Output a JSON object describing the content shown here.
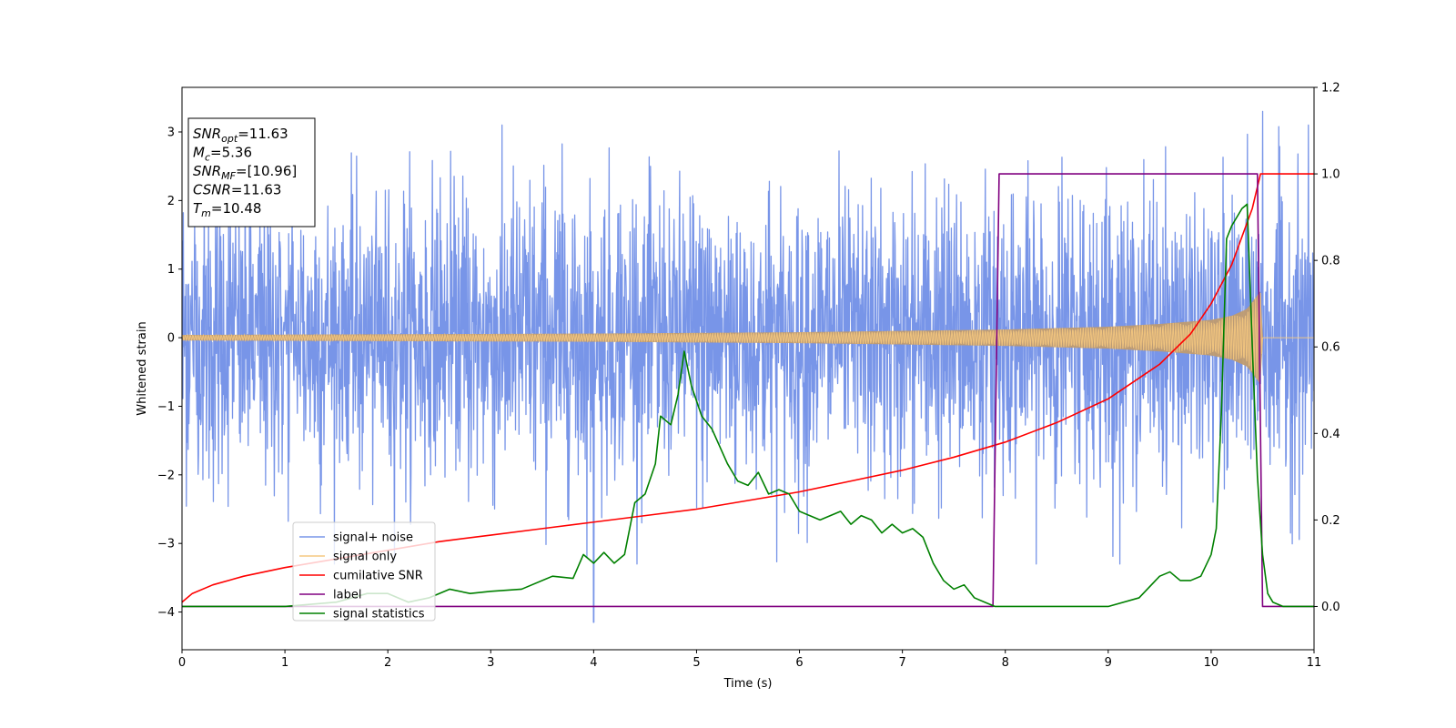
{
  "chart_data": {
    "type": "line",
    "xlabel": "Time (s)",
    "ylabel": "Whitened strain",
    "xlim": [
      0,
      11
    ],
    "ylim": [
      -4.55,
      3.65
    ],
    "y2lim": [
      -0.1,
      1.2
    ],
    "x_ticks": [
      "0",
      "1",
      "2",
      "3",
      "4",
      "5",
      "6",
      "7",
      "8",
      "9",
      "10",
      "11"
    ],
    "y_ticks": [
      "3",
      "2",
      "1",
      "0",
      "−1",
      "−2",
      "−3",
      "−4"
    ],
    "y2_ticks": [
      "1.2",
      "1.0",
      "0.8",
      "0.6",
      "0.4",
      "0.2",
      "0.0"
    ],
    "grid": false,
    "legend_position": "lower-left",
    "info_box": {
      "lines": [
        {
          "sym": "SNR",
          "sub": "opt",
          "val": "=11.63"
        },
        {
          "sym": "M",
          "sub": "c",
          "val": "=5.36"
        },
        {
          "sym": "SNR",
          "sub": "MF",
          "val": "=[10.96]"
        },
        {
          "sym": "CSNR",
          "sub": "",
          "val": "=11.63"
        },
        {
          "sym": "T",
          "sub": "m",
          "val": "=10.48"
        }
      ]
    },
    "series": [
      {
        "name": "signal+ noise",
        "axis": "left",
        "color": "#7895e8",
        "description_of_data": "whitened strain, roughly unit-variance noise spanning about -4.2 to 3.3",
        "envelope": {
          "typical_range": [
            -2.3,
            2.3
          ],
          "extreme_max": 3.3,
          "extreme_min": -4.15,
          "extreme_min_time": 4.0
        }
      },
      {
        "name": "signal only",
        "axis": "left",
        "color": "#f5c880",
        "description_of_data": "chirp signal, amplitude growing toward merger, ends at 10.48 s",
        "amplitude": [
          [
            0,
            0.04
          ],
          [
            2,
            0.05
          ],
          [
            4,
            0.06
          ],
          [
            6,
            0.08
          ],
          [
            8,
            0.12
          ],
          [
            9,
            0.16
          ],
          [
            9.5,
            0.2
          ],
          [
            10,
            0.26
          ],
          [
            10.2,
            0.32
          ],
          [
            10.35,
            0.42
          ],
          [
            10.43,
            0.58
          ],
          [
            10.48,
            0.68
          ],
          [
            10.5,
            0.0
          ],
          [
            11,
            0.0
          ]
        ]
      },
      {
        "name": "cumilative SNR",
        "axis": "right",
        "color": "#ff0000",
        "x": [
          0,
          0.1,
          0.3,
          0.6,
          1,
          1.5,
          2,
          2.5,
          3,
          3.5,
          4,
          4.5,
          5,
          5.5,
          6,
          6.5,
          7,
          7.5,
          8,
          8.5,
          9,
          9.5,
          9.8,
          10,
          10.2,
          10.4,
          10.48,
          10.5,
          11
        ],
        "y": [
          0.01,
          0.03,
          0.05,
          0.07,
          0.09,
          0.11,
          0.13,
          0.15,
          0.165,
          0.18,
          0.195,
          0.21,
          0.225,
          0.245,
          0.265,
          0.29,
          0.315,
          0.345,
          0.38,
          0.425,
          0.48,
          0.56,
          0.63,
          0.7,
          0.79,
          0.92,
          1.0,
          1.0,
          1.0
        ]
      },
      {
        "name": "label",
        "axis": "right",
        "color": "#800080",
        "x": [
          0,
          7.88,
          7.94,
          10.45,
          10.5,
          11
        ],
        "y": [
          0,
          0,
          1,
          1,
          0,
          0
        ]
      },
      {
        "name": "signal statistics",
        "axis": "right",
        "color": "#008000",
        "x": [
          0,
          1,
          1.5,
          1.8,
          2,
          2.2,
          2.4,
          2.6,
          2.8,
          3,
          3.3,
          3.6,
          3.8,
          3.9,
          4,
          4.1,
          4.2,
          4.3,
          4.4,
          4.5,
          4.6,
          4.65,
          4.75,
          4.82,
          4.88,
          4.95,
          5.05,
          5.15,
          5.3,
          5.4,
          5.5,
          5.6,
          5.7,
          5.8,
          5.9,
          6.0,
          6.1,
          6.2,
          6.4,
          6.5,
          6.6,
          6.7,
          6.8,
          6.9,
          7.0,
          7.1,
          7.2,
          7.3,
          7.4,
          7.5,
          7.6,
          7.7,
          7.8,
          7.9,
          8.2,
          8.6,
          9.0,
          9.3,
          9.5,
          9.6,
          9.7,
          9.8,
          9.9,
          10.0,
          10.05,
          10.1,
          10.15,
          10.2,
          10.3,
          10.35,
          10.4,
          10.45,
          10.5,
          10.55,
          10.6,
          10.7,
          11
        ],
        "y": [
          0,
          0.0,
          0.01,
          0.03,
          0.03,
          0.01,
          0.02,
          0.04,
          0.03,
          0.035,
          0.04,
          0.07,
          0.065,
          0.12,
          0.1,
          0.125,
          0.1,
          0.12,
          0.24,
          0.26,
          0.33,
          0.44,
          0.42,
          0.49,
          0.59,
          0.51,
          0.44,
          0.41,
          0.33,
          0.29,
          0.28,
          0.31,
          0.26,
          0.27,
          0.26,
          0.22,
          0.21,
          0.2,
          0.22,
          0.19,
          0.21,
          0.2,
          0.17,
          0.19,
          0.17,
          0.18,
          0.16,
          0.1,
          0.06,
          0.04,
          0.05,
          0.02,
          0.01,
          0.0,
          0.0,
          0.0,
          0.0,
          0.02,
          0.07,
          0.08,
          0.06,
          0.06,
          0.07,
          0.12,
          0.18,
          0.45,
          0.85,
          0.88,
          0.92,
          0.93,
          0.6,
          0.3,
          0.12,
          0.03,
          0.01,
          0.0,
          0.0
        ]
      }
    ]
  }
}
